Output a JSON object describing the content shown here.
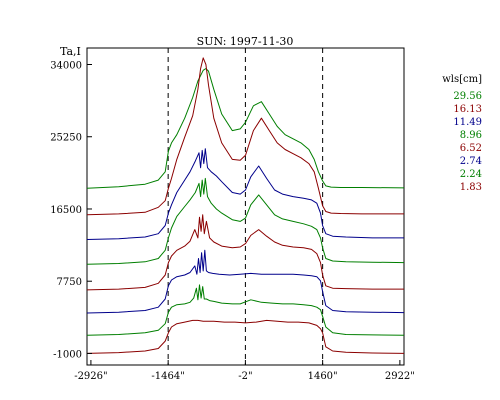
{
  "chart_data": {
    "type": "line",
    "title": "SUN: 1997-11-30",
    "ylabel": "Ta,I",
    "xlabel": "",
    "xlim": [
      -3000,
      3000
    ],
    "ylim": [
      -2400,
      36000
    ],
    "x_ticks": [
      -2926,
      -1464,
      -2,
      1460,
      2922
    ],
    "x_tick_labels": [
      "-2926\"",
      "-1464\"",
      "-2\"",
      "1460\"",
      "2922\""
    ],
    "y_ticks": [
      -1000,
      7750,
      16500,
      25250,
      34000
    ],
    "y_tick_labels": [
      "-1000",
      "7750",
      "16500",
      "25250",
      "34000"
    ],
    "vlines": [
      -1464,
      -2,
      1460
    ],
    "legend": {
      "title": "wls[cm]",
      "placement": "right",
      "entries": [
        "29.56",
        "16.13",
        "11.49",
        "8.96",
        "6.52",
        "2.74",
        "2.24",
        "1.83"
      ]
    },
    "grid": false,
    "series": [
      {
        "name": "29.56",
        "color": "#007f00",
        "x": [
          -3000,
          -2400,
          -1900,
          -1650,
          -1520,
          -1460,
          -1400,
          -1300,
          -1150,
          -1000,
          -900,
          -800,
          -750,
          -700,
          -600,
          -450,
          -250,
          -100,
          0,
          150,
          300,
          450,
          600,
          750,
          900,
          1050,
          1200,
          1300,
          1380,
          1460,
          1520,
          1620,
          1800,
          2200,
          3000
        ],
        "y": [
          19000,
          19200,
          19500,
          20000,
          21000,
          23500,
          24500,
          25500,
          27500,
          30000,
          32000,
          33300,
          33500,
          33200,
          31000,
          28000,
          26000,
          26200,
          27000,
          29000,
          29500,
          28000,
          26500,
          25500,
          25000,
          24500,
          23700,
          22500,
          21000,
          19900,
          19300,
          19150,
          19100,
          19100,
          19050
        ]
      },
      {
        "name": "16.13",
        "color": "#8b0000",
        "x": [
          -3000,
          -2400,
          -1900,
          -1650,
          -1520,
          -1460,
          -1400,
          -1300,
          -1150,
          -1000,
          -900,
          -850,
          -800,
          -750,
          -700,
          -600,
          -450,
          -250,
          -100,
          0,
          150,
          300,
          450,
          600,
          750,
          900,
          1050,
          1200,
          1300,
          1380,
          1460,
          1520,
          1620,
          1800,
          2200,
          3000
        ],
        "y": [
          15800,
          15900,
          16100,
          16700,
          17500,
          19000,
          20200,
          22500,
          25200,
          27800,
          31000,
          33500,
          34800,
          34000,
          31500,
          27500,
          24500,
          22500,
          22400,
          23000,
          26000,
          27500,
          26000,
          24500,
          23700,
          23200,
          22700,
          22000,
          21000,
          19000,
          16900,
          16200,
          16000,
          15950,
          15900,
          15900
        ]
      },
      {
        "name": "11.49",
        "color": "#00008b",
        "x": [
          -3000,
          -2400,
          -1900,
          -1650,
          -1520,
          -1460,
          -1400,
          -1300,
          -1150,
          -1050,
          -950,
          -880,
          -850,
          -820,
          -790,
          -760,
          -720,
          -650,
          -550,
          -450,
          -250,
          -100,
          0,
          100,
          250,
          400,
          550,
          700,
          900,
          1100,
          1250,
          1350,
          1420,
          1460,
          1520,
          1650,
          1900,
          2400,
          3000
        ],
        "y": [
          12800,
          12900,
          13100,
          13500,
          14500,
          16000,
          17000,
          18500,
          20000,
          21000,
          22300,
          23300,
          21500,
          23600,
          22000,
          23800,
          21500,
          21000,
          20500,
          19800,
          18500,
          18300,
          18800,
          20400,
          21700,
          20200,
          18800,
          18300,
          18000,
          17800,
          17600,
          17200,
          16000,
          14500,
          13500,
          13200,
          13100,
          13000,
          13000
        ]
      },
      {
        "name": "8.96",
        "color": "#007f00",
        "x": [
          -3000,
          -2400,
          -1900,
          -1650,
          -1520,
          -1460,
          -1400,
          -1300,
          -1150,
          -1050,
          -950,
          -880,
          -850,
          -820,
          -790,
          -760,
          -720,
          -650,
          -550,
          -450,
          -250,
          -100,
          0,
          100,
          250,
          400,
          550,
          700,
          900,
          1100,
          1250,
          1350,
          1420,
          1460,
          1520,
          1650,
          1900,
          2400,
          3000
        ],
        "y": [
          9800,
          9900,
          10100,
          10500,
          11500,
          13000,
          14200,
          15600,
          16800,
          17600,
          18500,
          19600,
          18000,
          20000,
          18300,
          20200,
          18000,
          17200,
          16500,
          16000,
          15200,
          15000,
          15400,
          17000,
          18200,
          17000,
          15800,
          15300,
          15000,
          14700,
          14400,
          14000,
          13000,
          11800,
          10500,
          10200,
          10100,
          10050,
          10000
        ]
      },
      {
        "name": "6.52",
        "color": "#8b0000",
        "x": [
          -3000,
          -2400,
          -1900,
          -1650,
          -1520,
          -1460,
          -1400,
          -1300,
          -1150,
          -1050,
          -960,
          -900,
          -870,
          -840,
          -810,
          -780,
          -740,
          -680,
          -600,
          -450,
          -250,
          -100,
          0,
          100,
          250,
          400,
          550,
          700,
          900,
          1100,
          1250,
          1350,
          1420,
          1460,
          1520,
          1650,
          1900,
          2400,
          3000
        ],
        "y": [
          6700,
          6800,
          7000,
          7500,
          8500,
          10000,
          10800,
          11500,
          12000,
          12600,
          14000,
          13000,
          15500,
          13800,
          15800,
          13500,
          15000,
          13000,
          12500,
          12000,
          11800,
          11900,
          12300,
          13300,
          14000,
          13200,
          12500,
          12100,
          11900,
          11800,
          11600,
          11100,
          10000,
          8500,
          7200,
          6900,
          6850,
          6800,
          6800
        ]
      },
      {
        "name": "2.74",
        "color": "#00008b",
        "x": [
          -3000,
          -2400,
          -1900,
          -1650,
          -1520,
          -1460,
          -1400,
          -1300,
          -1150,
          -1050,
          -960,
          -920,
          -890,
          -860,
          -830,
          -800,
          -770,
          -740,
          -700,
          -620,
          -500,
          -300,
          -100,
          100,
          300,
          500,
          700,
          900,
          1100,
          1250,
          1350,
          1420,
          1460,
          1520,
          1650,
          1900,
          2400,
          3000
        ],
        "y": [
          3900,
          4000,
          4200,
          4600,
          5600,
          7200,
          7900,
          8300,
          8500,
          8800,
          9600,
          8600,
          10500,
          8800,
          11200,
          9000,
          11500,
          9000,
          8800,
          8700,
          8600,
          8500,
          8600,
          8700,
          8600,
          8600,
          8600,
          8600,
          8500,
          8400,
          8300,
          7800,
          6500,
          4800,
          4200,
          4050,
          4000,
          3950
        ]
      },
      {
        "name": "2.24",
        "color": "#007f00",
        "x": [
          -3000,
          -2400,
          -1900,
          -1650,
          -1520,
          -1460,
          -1400,
          -1300,
          -1150,
          -1050,
          -980,
          -930,
          -900,
          -870,
          -840,
          -810,
          -780,
          -740,
          -680,
          -600,
          -450,
          -250,
          -100,
          100,
          300,
          500,
          700,
          900,
          1100,
          1250,
          1350,
          1420,
          1460,
          1520,
          1650,
          1900,
          2400,
          3000
        ],
        "y": [
          1200,
          1300,
          1500,
          1800,
          2600,
          4000,
          4600,
          4900,
          5000,
          5200,
          5700,
          6900,
          5500,
          7300,
          5700,
          7100,
          5600,
          5600,
          5400,
          5300,
          5100,
          5000,
          5000,
          5500,
          5200,
          5100,
          5000,
          5000,
          4900,
          4800,
          4600,
          4300,
          3500,
          2200,
          1500,
          1300,
          1250,
          1200
        ]
      },
      {
        "name": "1.83",
        "color": "#8b0000",
        "x": [
          -3000,
          -2400,
          -1900,
          -1650,
          -1520,
          -1460,
          -1400,
          -1300,
          -1150,
          -1000,
          -900,
          -800,
          -600,
          -400,
          -200,
          0,
          200,
          400,
          600,
          800,
          1000,
          1200,
          1350,
          1420,
          1460,
          1520,
          1650,
          1900,
          2400,
          3000
        ],
        "y": [
          -1000,
          -900,
          -700,
          -400,
          500,
          1500,
          2200,
          2600,
          2800,
          3000,
          3000,
          2900,
          2900,
          2800,
          2800,
          2700,
          2800,
          3000,
          2900,
          2800,
          2800,
          2700,
          2400,
          2000,
          1500,
          -200,
          -700,
          -850,
          -950,
          -1000
        ]
      }
    ]
  }
}
